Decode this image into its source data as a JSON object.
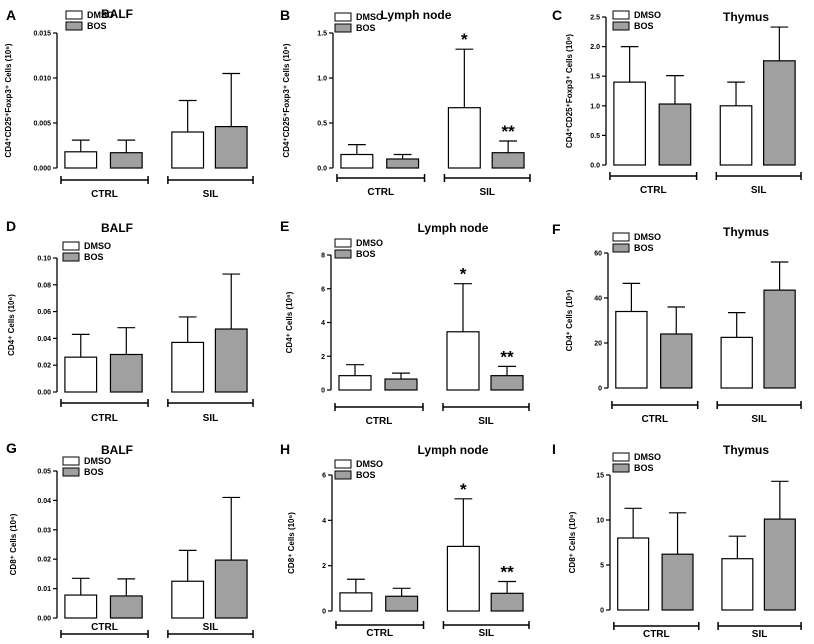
{
  "chart_data": [
    {
      "id": "A",
      "panel_label": "A",
      "type": "bar",
      "title": "BALF",
      "ylabel": "CD4⁺CD25⁺Foxp3⁺ Cells (10⁶)",
      "ylim": [
        0,
        0.015
      ],
      "yticks": [
        0,
        0.005,
        0.01,
        0.015
      ],
      "ytick_labels": [
        "0.000",
        "0.005",
        "0.010",
        "0.015"
      ],
      "groups": [
        "CTRL",
        "SIL"
      ],
      "series": [
        {
          "name": "DMSO",
          "color": "#ffffff",
          "values": [
            0.0018,
            0.004
          ],
          "errors": [
            0.0013,
            0.0035
          ],
          "annotations": [
            "",
            ""
          ]
        },
        {
          "name": "BOS",
          "color": "#a0a0a0",
          "values": [
            0.0017,
            0.0046
          ],
          "errors": [
            0.0014,
            0.0059
          ],
          "annotations": [
            "",
            ""
          ]
        }
      ]
    },
    {
      "id": "B",
      "panel_label": "B",
      "type": "bar",
      "title": "Lymph node",
      "ylabel": "CD4⁺CD25⁺Foxp3⁺ Cells (10⁶)",
      "ylim": [
        0,
        1.5
      ],
      "yticks": [
        0,
        0.5,
        1.0,
        1.5
      ],
      "ytick_labels": [
        "0.0",
        "0.5",
        "1.0",
        "1.5"
      ],
      "groups": [
        "CTRL",
        "SIL"
      ],
      "series": [
        {
          "name": "DMSO",
          "color": "#ffffff",
          "values": [
            0.15,
            0.67
          ],
          "errors": [
            0.11,
            0.65
          ],
          "annotations": [
            "",
            "*"
          ]
        },
        {
          "name": "BOS",
          "color": "#a0a0a0",
          "values": [
            0.1,
            0.17
          ],
          "errors": [
            0.05,
            0.13
          ],
          "annotations": [
            "",
            "**"
          ]
        }
      ]
    },
    {
      "id": "C",
      "panel_label": "C",
      "type": "bar",
      "title": "Thymus",
      "ylabel": "CD4⁺CD25⁺Foxp3⁺ Cells (10⁶)",
      "ylim": [
        0,
        2.5
      ],
      "yticks": [
        0,
        0.5,
        1.0,
        1.5,
        2.0,
        2.5
      ],
      "ytick_labels": [
        "0.0",
        "0.5",
        "1.0",
        "1.5",
        "2.0",
        "2.5"
      ],
      "groups": [
        "CTRL",
        "SIL"
      ],
      "series": [
        {
          "name": "DMSO",
          "color": "#ffffff",
          "values": [
            1.4,
            1.0
          ],
          "errors": [
            0.6,
            0.4
          ],
          "annotations": [
            "",
            ""
          ]
        },
        {
          "name": "BOS",
          "color": "#a0a0a0",
          "values": [
            1.03,
            1.76
          ],
          "errors": [
            0.48,
            0.57
          ],
          "annotations": [
            "",
            ""
          ]
        }
      ]
    },
    {
      "id": "D",
      "panel_label": "D",
      "type": "bar",
      "title": "BALF",
      "ylabel": "CD4⁺ Cells (10⁶)",
      "ylim": [
        0,
        0.1
      ],
      "yticks": [
        0,
        0.02,
        0.04,
        0.06,
        0.08,
        0.1
      ],
      "ytick_labels": [
        "0.00",
        "0.02",
        "0.04",
        "0.06",
        "0.08",
        "0.10"
      ],
      "groups": [
        "CTRL",
        "SIL"
      ],
      "series": [
        {
          "name": "DMSO",
          "color": "#ffffff",
          "values": [
            0.026,
            0.037
          ],
          "errors": [
            0.017,
            0.019
          ],
          "annotations": [
            "",
            ""
          ]
        },
        {
          "name": "BOS",
          "color": "#a0a0a0",
          "values": [
            0.028,
            0.047
          ],
          "errors": [
            0.02,
            0.041
          ],
          "annotations": [
            "",
            ""
          ]
        }
      ]
    },
    {
      "id": "E",
      "panel_label": "E",
      "type": "bar",
      "title": "Lymph node",
      "ylabel": "CD4⁺ Cells (10⁶)",
      "ylim": [
        0,
        8
      ],
      "yticks": [
        0,
        2,
        4,
        6,
        8
      ],
      "ytick_labels": [
        "0",
        "2",
        "4",
        "6",
        "8"
      ],
      "groups": [
        "CTRL",
        "SIL"
      ],
      "series": [
        {
          "name": "DMSO",
          "color": "#ffffff",
          "values": [
            0.85,
            3.45
          ],
          "errors": [
            0.65,
            2.85
          ],
          "annotations": [
            "",
            "*"
          ]
        },
        {
          "name": "BOS",
          "color": "#a0a0a0",
          "values": [
            0.65,
            0.85
          ],
          "errors": [
            0.35,
            0.55
          ],
          "annotations": [
            "",
            "**"
          ]
        }
      ]
    },
    {
      "id": "F",
      "panel_label": "F",
      "type": "bar",
      "title": "Thymus",
      "ylabel": "CD4⁺ Cells (10⁶)",
      "ylim": [
        0,
        60
      ],
      "yticks": [
        0,
        20,
        40,
        60
      ],
      "ytick_labels": [
        "0",
        "20",
        "40",
        "60"
      ],
      "groups": [
        "CTRL",
        "SIL"
      ],
      "series": [
        {
          "name": "DMSO",
          "color": "#ffffff",
          "values": [
            34,
            22.5
          ],
          "errors": [
            12.5,
            11
          ],
          "annotations": [
            "",
            ""
          ]
        },
        {
          "name": "BOS",
          "color": "#a0a0a0",
          "values": [
            24,
            43.5
          ],
          "errors": [
            12,
            12.5
          ],
          "annotations": [
            "",
            ""
          ]
        }
      ]
    },
    {
      "id": "G",
      "panel_label": "G",
      "type": "bar",
      "title": "BALF",
      "ylabel": "CD8⁺ Cells (10⁶)",
      "ylim": [
        0,
        0.05
      ],
      "yticks": [
        0,
        0.01,
        0.02,
        0.03,
        0.04,
        0.05
      ],
      "ytick_labels": [
        "0.00",
        "0.01",
        "0.02",
        "0.03",
        "0.04",
        "0.05"
      ],
      "groups": [
        "CTRL",
        "SIL"
      ],
      "series": [
        {
          "name": "DMSO",
          "color": "#ffffff",
          "values": [
            0.0078,
            0.0125
          ],
          "errors": [
            0.0057,
            0.0105
          ],
          "annotations": [
            "",
            ""
          ]
        },
        {
          "name": "BOS",
          "color": "#a0a0a0",
          "values": [
            0.0075,
            0.0197
          ],
          "errors": [
            0.0058,
            0.0213
          ],
          "annotations": [
            "",
            ""
          ]
        }
      ]
    },
    {
      "id": "H",
      "panel_label": "H",
      "type": "bar",
      "title": "Lymph node",
      "ylabel": "CD8⁺ Cells (10⁶)",
      "ylim": [
        0,
        6
      ],
      "yticks": [
        0,
        2,
        4,
        6
      ],
      "ytick_labels": [
        "0",
        "2",
        "4",
        "6"
      ],
      "groups": [
        "CTRL",
        "SIL"
      ],
      "series": [
        {
          "name": "DMSO",
          "color": "#ffffff",
          "values": [
            0.8,
            2.85
          ],
          "errors": [
            0.6,
            2.1
          ],
          "annotations": [
            "",
            "*"
          ]
        },
        {
          "name": "BOS",
          "color": "#a0a0a0",
          "values": [
            0.65,
            0.78
          ],
          "errors": [
            0.35,
            0.52
          ],
          "annotations": [
            "",
            "**"
          ]
        }
      ]
    },
    {
      "id": "I",
      "panel_label": "I",
      "type": "bar",
      "title": "Thymus",
      "ylabel": "CD8⁺ Cells (10⁶)",
      "ylim": [
        0,
        15
      ],
      "yticks": [
        0,
        5,
        10,
        15
      ],
      "ytick_labels": [
        "0",
        "5",
        "10",
        "15"
      ],
      "groups": [
        "CTRL",
        "SIL"
      ],
      "series": [
        {
          "name": "DMSO",
          "color": "#ffffff",
          "values": [
            8.0,
            5.7
          ],
          "errors": [
            3.3,
            2.5
          ],
          "annotations": [
            "",
            ""
          ]
        },
        {
          "name": "BOS",
          "color": "#a0a0a0",
          "values": [
            6.2,
            10.1
          ],
          "errors": [
            4.6,
            4.2
          ],
          "annotations": [
            "",
            ""
          ]
        }
      ]
    }
  ]
}
